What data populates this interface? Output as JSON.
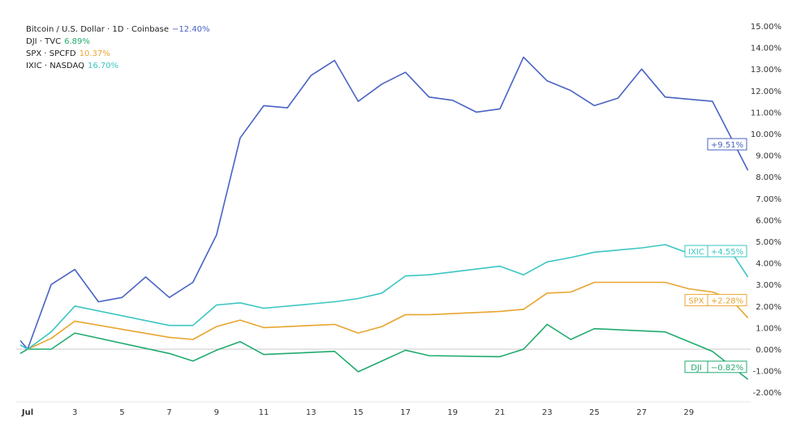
{
  "chart_data": {
    "type": "line",
    "title": "",
    "xlabel": "",
    "ylabel": "",
    "x_tick_labels": [
      {
        "x": 1,
        "label": "Jul"
      },
      {
        "x": 3,
        "label": "3"
      },
      {
        "x": 5,
        "label": "5"
      },
      {
        "x": 7,
        "label": "7"
      },
      {
        "x": 9,
        "label": "9"
      },
      {
        "x": 11,
        "label": "11"
      },
      {
        "x": 13,
        "label": "13"
      },
      {
        "x": 15,
        "label": "15"
      },
      {
        "x": 17,
        "label": "17"
      },
      {
        "x": 19,
        "label": "19"
      },
      {
        "x": 21,
        "label": "21"
      },
      {
        "x": 23,
        "label": "23"
      },
      {
        "x": 25,
        "label": "25"
      },
      {
        "x": 27,
        "label": "27"
      },
      {
        "x": 29,
        "label": "29"
      }
    ],
    "y_ticks": [
      -2,
      -1,
      0,
      1,
      2,
      3,
      4,
      5,
      6,
      7,
      8,
      9,
      10,
      11,
      12,
      13,
      14,
      15
    ],
    "y_tick_labels": [
      "-2.00%",
      "-1.00%",
      "0.00%",
      "1.00%",
      "2.00%",
      "3.00%",
      "4.00%",
      "5.00%",
      "6.00%",
      "7.00%",
      "8.00%",
      "9.00%",
      "10.00%",
      "11.00%",
      "12.00%",
      "13.00%",
      "14.00%",
      "15.00%"
    ],
    "xlim": [
      0.5,
      32.2
    ],
    "ylim": [
      -2.4,
      15.2
    ],
    "y_unit": "%",
    "zero_line": true,
    "legend_position": "top-left",
    "series": [
      {
        "name": "Bitcoin / U.S. Dollar · 1D · Coinbase",
        "legend_value": "−12.40%",
        "color": "#4a63c4",
        "badge": "+9.51%",
        "badge_value": 9.51,
        "badge_label": "",
        "x": [
          0.69,
          1,
          2,
          3,
          4,
          5,
          6,
          7,
          8,
          9,
          10,
          11,
          12,
          13,
          14,
          15,
          16,
          17,
          18,
          19,
          20,
          21,
          22,
          23,
          24,
          25,
          26,
          27,
          28,
          29,
          30,
          31.5
        ],
        "y": [
          0.4,
          0,
          3.0,
          3.7,
          2.2,
          2.4,
          3.35,
          2.4,
          3.1,
          5.3,
          9.8,
          11.3,
          11.2,
          12.7,
          13.4,
          11.5,
          12.3,
          12.85,
          11.7,
          11.55,
          11.0,
          11.15,
          13.55,
          12.45,
          12.0,
          11.3,
          11.65,
          13.0,
          11.7,
          11.6,
          11.5,
          8.3
        ]
      },
      {
        "name": "DJI · TVC",
        "legend_value": "6.89%",
        "color": "#22ab6e",
        "badge": "−0.82%",
        "badge_value": -0.82,
        "badge_label": "DJI",
        "x": [
          0.69,
          1,
          2,
          3,
          7,
          8,
          9,
          10,
          11,
          14,
          15,
          16,
          17,
          18,
          21,
          22,
          23,
          24,
          25,
          28,
          29,
          30,
          31.5
        ],
        "y": [
          -0.2,
          0,
          0,
          0.75,
          -0.2,
          -0.55,
          -0.05,
          0.35,
          -0.25,
          -0.1,
          -1.05,
          -0.55,
          -0.05,
          -0.3,
          -0.35,
          0,
          1.15,
          0.45,
          0.95,
          0.8,
          0.35,
          -0.1,
          -1.4
        ]
      },
      {
        "name": "SPX · SPCFD",
        "legend_value": "10.37%",
        "color": "#e8a530",
        "badge": "+2.28%",
        "badge_value": 2.28,
        "badge_label": "SPX",
        "x": [
          1,
          2,
          3,
          7,
          8,
          9,
          10,
          11,
          14,
          15,
          16,
          17,
          18,
          21,
          22,
          23,
          24,
          25,
          27,
          28,
          29,
          30,
          30.75,
          31.5
        ],
        "y": [
          0,
          0.5,
          1.3,
          0.55,
          0.45,
          1.05,
          1.35,
          1.0,
          1.15,
          0.75,
          1.05,
          1.6,
          1.6,
          1.75,
          1.85,
          2.6,
          2.65,
          3.1,
          3.1,
          3.1,
          2.8,
          2.65,
          2.35,
          1.45
        ]
      },
      {
        "name": "IXIC · NASDAQ",
        "legend_value": "16.70%",
        "color": "#3cc6c2",
        "badge": "+4.55%",
        "badge_value": 4.55,
        "badge_label": "IXIC",
        "x": [
          0.69,
          1,
          2,
          3,
          7,
          8,
          9,
          10,
          11,
          14,
          15,
          16,
          17,
          18,
          21,
          22,
          23,
          24,
          25,
          27,
          28,
          29,
          30,
          30.75,
          31.5
        ],
        "y": [
          0.2,
          0,
          0.8,
          2.0,
          1.1,
          1.1,
          2.05,
          2.15,
          1.9,
          2.2,
          2.35,
          2.6,
          3.4,
          3.45,
          3.85,
          3.45,
          4.05,
          4.25,
          4.5,
          4.7,
          4.85,
          4.45,
          4.6,
          4.6,
          3.35
        ]
      }
    ]
  }
}
